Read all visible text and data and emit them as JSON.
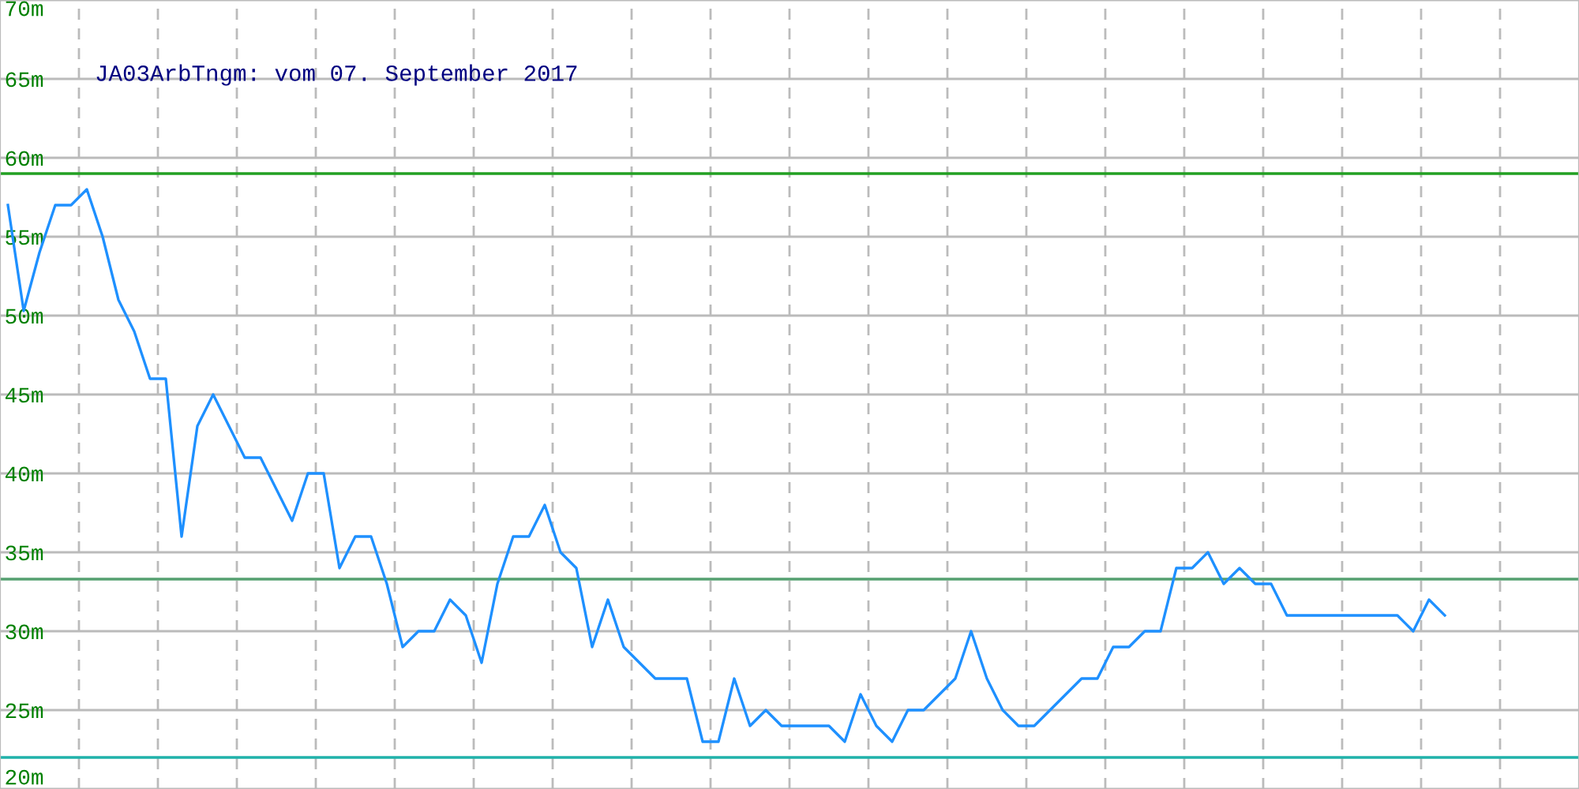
{
  "chart_data": {
    "type": "line",
    "title": "JA03ArbTngm: vom 07. September 2017",
    "categories": [
      null,
      null,
      null,
      null,
      null,
      null,
      null,
      null,
      null,
      null,
      null,
      null,
      null,
      null,
      null,
      null,
      null,
      null,
      null,
      null,
      null,
      null,
      null,
      null,
      null,
      null,
      null,
      null,
      null,
      null,
      null,
      null,
      null,
      null,
      null,
      null,
      null,
      null,
      null,
      null,
      null,
      null,
      null,
      null,
      null,
      null,
      null,
      null,
      null,
      null,
      null,
      null,
      null,
      null,
      null,
      null,
      null,
      null,
      null,
      null,
      null,
      null,
      null,
      null,
      null,
      null,
      null,
      null,
      null,
      null,
      null,
      null,
      null,
      null,
      null,
      null,
      null,
      null,
      null,
      null,
      null,
      null,
      null,
      null,
      null,
      null,
      null,
      null,
      null,
      null,
      null,
      null,
      null,
      null,
      null,
      null,
      null,
      null,
      null,
      null
    ],
    "series": [
      {
        "color": "#1e90ff",
        "values": [
          57,
          50.3,
          54,
          57,
          57,
          58,
          55,
          51,
          49,
          46,
          46,
          36,
          43,
          45,
          43,
          41,
          41,
          39,
          37,
          40,
          40,
          34,
          36,
          36,
          33,
          29,
          30,
          30,
          32,
          31,
          28,
          33,
          36,
          36,
          38,
          35,
          34,
          29,
          32,
          29,
          28,
          27,
          27,
          27,
          23,
          23,
          27,
          24,
          25,
          24,
          24,
          24,
          24,
          23,
          26,
          24,
          23,
          25,
          25,
          26,
          27,
          30,
          27,
          25,
          24,
          24,
          25,
          26,
          27,
          27,
          29,
          29,
          30,
          30,
          34,
          34,
          35,
          33,
          34,
          33,
          33,
          31,
          31,
          31,
          31,
          31,
          31,
          31,
          31,
          30,
          32,
          31,
          null,
          null,
          null,
          null,
          null,
          null,
          null,
          null
        ]
      }
    ],
    "ylim": [
      20,
      70
    ],
    "yticks": [
      {
        "value": 20,
        "label": "20m"
      },
      {
        "value": 25,
        "label": "25m"
      },
      {
        "value": 30,
        "label": "30m"
      },
      {
        "value": 35,
        "label": "35m"
      },
      {
        "value": 40,
        "label": "40m"
      },
      {
        "value": 45,
        "label": "45m"
      },
      {
        "value": 50,
        "label": "50m"
      },
      {
        "value": 55,
        "label": "55m"
      },
      {
        "value": 60,
        "label": "60m"
      },
      {
        "value": 65,
        "label": "65m"
      },
      {
        "value": 70,
        "label": "70m"
      }
    ],
    "tick_labels": "y",
    "grid": true,
    "ref_lines": [
      {
        "axis": "y",
        "value": 59,
        "label": null,
        "color": "#22a022"
      },
      {
        "axis": "y",
        "value": 33.3,
        "label": null,
        "color": "#55a070"
      },
      {
        "axis": "y",
        "value": 22,
        "label": null,
        "color": "#20b2aa"
      }
    ]
  }
}
